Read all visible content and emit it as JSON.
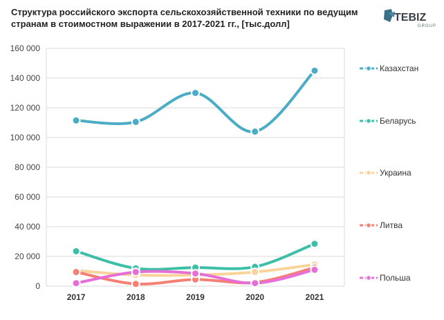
{
  "chart_data": {
    "type": "line",
    "title": "Структура российского экспорта сельскохозяйственной техники по ведущим странам в стоимостном выражении в 2017-2021 гг., [тыс.долл]",
    "xlabel": "",
    "ylabel": "",
    "categories": [
      "2017",
      "2018",
      "2019",
      "2020",
      "2021"
    ],
    "ylim": [
      0,
      160000
    ],
    "y_ticks": [
      "0",
      "20 000",
      "40 000",
      "60 000",
      "80 000",
      "100 000",
      "120 000",
      "140 000",
      "160 000"
    ],
    "y_tick_values": [
      0,
      20000,
      40000,
      60000,
      80000,
      100000,
      120000,
      140000,
      160000
    ],
    "grid": true,
    "legend_position": "right",
    "series": [
      {
        "name": "Казахстан",
        "color": "#4bacc6",
        "values": [
          111500,
          110500,
          130000,
          104000,
          145000
        ]
      },
      {
        "name": "Беларусь",
        "color": "#3cbfa6",
        "values": [
          23500,
          12000,
          12500,
          13000,
          28500
        ]
      },
      {
        "name": "Украина",
        "color": "#f9d39a",
        "values": [
          10500,
          7500,
          7500,
          9500,
          14500
        ]
      },
      {
        "name": "Литва",
        "color": "#f47f72",
        "values": [
          9500,
          1500,
          4500,
          2500,
          12500
        ]
      },
      {
        "name": "Польша",
        "color": "#e56fd6",
        "values": [
          2000,
          9500,
          8500,
          2000,
          11000
        ]
      }
    ]
  },
  "logo": {
    "brand": "TEBIZ",
    "sub": "GROUP",
    "icon": "tebiz-logo-icon"
  }
}
